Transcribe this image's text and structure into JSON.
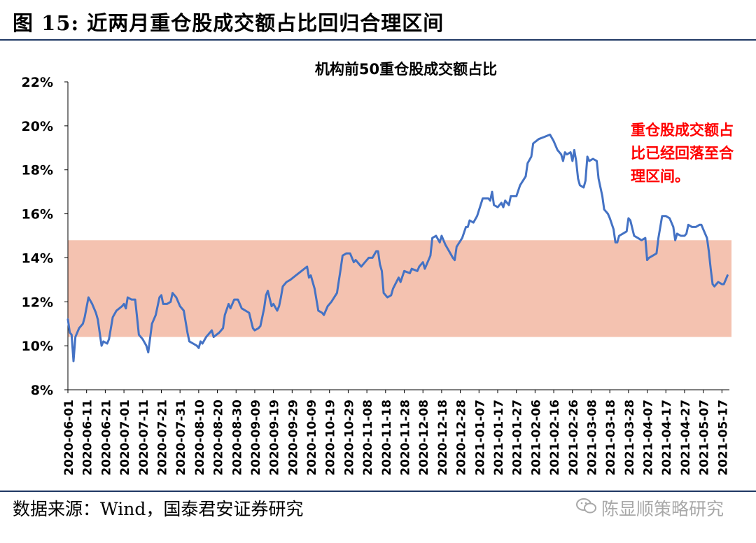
{
  "figure_title": "图 15:  近两月重仓股成交额占比回归合理区间",
  "source_text": "数据来源：Wind，国泰君安证券研究",
  "watermark_text": "陈显顺策略研究",
  "watermark_icon": "wechat-icon",
  "colors": {
    "line": "#4472c4",
    "band": "#f4c2b0",
    "annotation": "#ff0000",
    "rule": "#1f3864"
  },
  "chart_data": {
    "type": "line",
    "title": "机构前50重仓股成交额占比",
    "annotation": [
      "重仓股成交额占",
      "比已经回落至合",
      "理区间。"
    ],
    "ylim": [
      8,
      22
    ],
    "yticks": [
      8,
      10,
      12,
      14,
      16,
      18,
      20,
      22
    ],
    "ytick_labels": [
      "8%",
      "10%",
      "12%",
      "14%",
      "16%",
      "18%",
      "20%",
      "22%"
    ],
    "xtick_labels": [
      "2020-06-01",
      "2020-06-11",
      "2020-06-21",
      "2020-07-01",
      "2020-07-11",
      "2020-07-21",
      "2020-07-31",
      "2020-08-10",
      "2020-08-20",
      "2020-08-30",
      "2020-09-09",
      "2020-09-19",
      "2020-09-29",
      "2020-10-09",
      "2020-10-19",
      "2020-10-29",
      "2020-11-08",
      "2020-11-18",
      "2020-11-28",
      "2020-12-08",
      "2020-12-18",
      "2020-12-28",
      "2021-01-07",
      "2021-01-17",
      "2021-01-27",
      "2021-02-06",
      "2021-02-16",
      "2021-02-26",
      "2021-03-08",
      "2021-03-18",
      "2021-03-28",
      "2021-04-07",
      "2021-04-17",
      "2021-04-27",
      "2021-05-07",
      "2021-05-17"
    ],
    "x_start": "2020-06-01",
    "x_end": "2021-05-21",
    "shaded_band": [
      10.4,
      14.8
    ],
    "series": [
      {
        "points": [
          [
            "2020-06-01",
            11.2
          ],
          [
            "2020-06-02",
            10.6
          ],
          [
            "2020-06-03",
            10.5
          ],
          [
            "2020-06-04",
            9.3
          ],
          [
            "2020-06-05",
            10.4
          ],
          [
            "2020-06-07",
            10.8
          ],
          [
            "2020-06-09",
            11.0
          ],
          [
            "2020-06-10",
            11.3
          ],
          [
            "2020-06-12",
            12.2
          ],
          [
            "2020-06-14",
            11.9
          ],
          [
            "2020-06-16",
            11.5
          ],
          [
            "2020-06-17",
            11.2
          ],
          [
            "2020-06-19",
            10.0
          ],
          [
            "2020-06-20",
            10.2
          ],
          [
            "2020-06-22",
            10.1
          ],
          [
            "2020-06-23",
            10.3
          ],
          [
            "2020-06-25",
            11.3
          ],
          [
            "2020-06-27",
            11.6
          ],
          [
            "2020-06-30",
            11.8
          ],
          [
            "2020-07-01",
            11.9
          ],
          [
            "2020-07-02",
            11.7
          ],
          [
            "2020-07-03",
            12.2
          ],
          [
            "2020-07-05",
            12.1
          ],
          [
            "2020-07-07",
            12.1
          ],
          [
            "2020-07-08",
            11.3
          ],
          [
            "2020-07-09",
            10.5
          ],
          [
            "2020-07-11",
            10.3
          ],
          [
            "2020-07-13",
            10.0
          ],
          [
            "2020-07-14",
            9.7
          ],
          [
            "2020-07-16",
            11.0
          ],
          [
            "2020-07-18",
            11.4
          ],
          [
            "2020-07-20",
            12.2
          ],
          [
            "2020-07-21",
            12.3
          ],
          [
            "2020-07-22",
            11.9
          ],
          [
            "2020-07-24",
            11.9
          ],
          [
            "2020-07-26",
            12.0
          ],
          [
            "2020-07-27",
            12.4
          ],
          [
            "2020-07-29",
            12.2
          ],
          [
            "2020-07-31",
            11.8
          ],
          [
            "2020-08-02",
            11.6
          ],
          [
            "2020-08-04",
            10.6
          ],
          [
            "2020-08-05",
            10.2
          ],
          [
            "2020-08-07",
            10.1
          ],
          [
            "2020-08-09",
            10.0
          ],
          [
            "2020-08-10",
            9.9
          ],
          [
            "2020-08-11",
            10.2
          ],
          [
            "2020-08-12",
            10.1
          ],
          [
            "2020-08-14",
            10.4
          ],
          [
            "2020-08-17",
            10.7
          ],
          [
            "2020-08-18",
            10.4
          ],
          [
            "2020-08-21",
            10.6
          ],
          [
            "2020-08-23",
            10.8
          ],
          [
            "2020-08-24",
            11.4
          ],
          [
            "2020-08-26",
            11.9
          ],
          [
            "2020-08-27",
            11.7
          ],
          [
            "2020-08-29",
            12.1
          ],
          [
            "2020-08-31",
            12.1
          ],
          [
            "2020-09-02",
            11.7
          ],
          [
            "2020-09-04",
            11.6
          ],
          [
            "2020-09-06",
            11.5
          ],
          [
            "2020-09-08",
            10.8
          ],
          [
            "2020-09-09",
            10.7
          ],
          [
            "2020-09-11",
            10.8
          ],
          [
            "2020-09-12",
            10.9
          ],
          [
            "2020-09-14",
            11.7
          ],
          [
            "2020-09-15",
            12.3
          ],
          [
            "2020-09-16",
            12.5
          ],
          [
            "2020-09-18",
            11.8
          ],
          [
            "2020-09-19",
            11.9
          ],
          [
            "2020-09-21",
            11.6
          ],
          [
            "2020-09-22",
            11.8
          ],
          [
            "2020-09-23",
            12.2
          ],
          [
            "2020-09-24",
            12.7
          ],
          [
            "2020-09-26",
            12.9
          ],
          [
            "2020-09-28",
            13.0
          ],
          [
            "2020-10-01",
            13.2
          ],
          [
            "2020-10-04",
            13.4
          ],
          [
            "2020-10-07",
            13.6
          ],
          [
            "2020-10-08",
            13.1
          ],
          [
            "2020-10-09",
            13.2
          ],
          [
            "2020-10-11",
            12.6
          ],
          [
            "2020-10-13",
            11.6
          ],
          [
            "2020-10-15",
            11.5
          ],
          [
            "2020-10-16",
            11.4
          ],
          [
            "2020-10-18",
            11.8
          ],
          [
            "2020-10-20",
            12.0
          ],
          [
            "2020-10-23",
            12.4
          ],
          [
            "2020-10-25",
            13.5
          ],
          [
            "2020-10-26",
            14.1
          ],
          [
            "2020-10-28",
            14.2
          ],
          [
            "2020-10-30",
            14.2
          ],
          [
            "2020-11-01",
            13.8
          ],
          [
            "2020-11-02",
            13.9
          ],
          [
            "2020-11-04",
            13.7
          ],
          [
            "2020-11-05",
            13.6
          ],
          [
            "2020-11-07",
            13.8
          ],
          [
            "2020-11-09",
            14.0
          ],
          [
            "2020-11-11",
            14.0
          ],
          [
            "2020-11-13",
            14.3
          ],
          [
            "2020-11-14",
            14.3
          ],
          [
            "2020-11-15",
            13.7
          ],
          [
            "2020-11-16",
            13.4
          ],
          [
            "2020-11-17",
            12.4
          ],
          [
            "2020-11-19",
            12.2
          ],
          [
            "2020-11-21",
            12.3
          ],
          [
            "2020-11-22",
            12.6
          ],
          [
            "2020-11-25",
            13.1
          ],
          [
            "2020-11-26",
            12.9
          ],
          [
            "2020-11-28",
            13.4
          ],
          [
            "2020-12-01",
            13.3
          ],
          [
            "2020-12-02",
            13.5
          ],
          [
            "2020-12-05",
            13.4
          ],
          [
            "2020-12-06",
            13.6
          ],
          [
            "2020-12-08",
            13.8
          ],
          [
            "2020-12-09",
            13.5
          ],
          [
            "2020-12-12",
            14.1
          ],
          [
            "2020-12-13",
            14.9
          ],
          [
            "2020-12-15",
            15.0
          ],
          [
            "2020-12-17",
            14.7
          ],
          [
            "2020-12-18",
            15.0
          ],
          [
            "2020-12-20",
            14.6
          ],
          [
            "2020-12-22",
            14.3
          ],
          [
            "2020-12-24",
            14.0
          ],
          [
            "2020-12-25",
            13.9
          ],
          [
            "2020-12-26",
            14.5
          ],
          [
            "2020-12-29",
            14.9
          ],
          [
            "2020-12-31",
            15.4
          ],
          [
            "2021-01-01",
            15.4
          ],
          [
            "2021-01-02",
            15.7
          ],
          [
            "2021-01-04",
            15.6
          ],
          [
            "2021-01-06",
            15.9
          ],
          [
            "2021-01-09",
            16.7
          ],
          [
            "2021-01-12",
            16.7
          ],
          [
            "2021-01-13",
            16.6
          ],
          [
            "2021-01-14",
            17.0
          ],
          [
            "2021-01-15",
            16.4
          ],
          [
            "2021-01-17",
            16.3
          ],
          [
            "2021-01-19",
            16.5
          ],
          [
            "2021-01-20",
            16.3
          ],
          [
            "2021-01-21",
            16.6
          ],
          [
            "2021-01-23",
            16.4
          ],
          [
            "2021-01-24",
            16.8
          ],
          [
            "2021-01-27",
            16.8
          ],
          [
            "2021-01-29",
            17.3
          ],
          [
            "2021-02-01",
            17.7
          ],
          [
            "2021-02-02",
            18.3
          ],
          [
            "2021-02-04",
            18.6
          ],
          [
            "2021-02-05",
            19.2
          ],
          [
            "2021-02-08",
            19.4
          ],
          [
            "2021-02-11",
            19.5
          ],
          [
            "2021-02-14",
            19.6
          ],
          [
            "2021-02-16",
            19.3
          ],
          [
            "2021-02-18",
            18.9
          ],
          [
            "2021-02-20",
            18.7
          ],
          [
            "2021-02-21",
            18.4
          ],
          [
            "2021-02-22",
            18.8
          ],
          [
            "2021-02-23",
            18.7
          ],
          [
            "2021-02-25",
            18.8
          ],
          [
            "2021-02-26",
            18.4
          ],
          [
            "2021-02-27",
            18.9
          ],
          [
            "2021-02-28",
            18.4
          ],
          [
            "2021-03-01",
            17.6
          ],
          [
            "2021-03-02",
            17.3
          ],
          [
            "2021-03-04",
            17.2
          ],
          [
            "2021-03-05",
            17.5
          ],
          [
            "2021-03-06",
            18.6
          ],
          [
            "2021-03-07",
            18.4
          ],
          [
            "2021-03-09",
            18.5
          ],
          [
            "2021-03-11",
            18.4
          ],
          [
            "2021-03-12",
            17.6
          ],
          [
            "2021-03-14",
            16.8
          ],
          [
            "2021-03-15",
            16.2
          ],
          [
            "2021-03-17",
            16.0
          ],
          [
            "2021-03-18",
            15.8
          ],
          [
            "2021-03-20",
            15.3
          ],
          [
            "2021-03-21",
            14.7
          ],
          [
            "2021-03-22",
            14.7
          ],
          [
            "2021-03-23",
            15.0
          ],
          [
            "2021-03-25",
            15.1
          ],
          [
            "2021-03-27",
            15.2
          ],
          [
            "2021-03-28",
            15.8
          ],
          [
            "2021-03-29",
            15.7
          ],
          [
            "2021-03-31",
            15.0
          ],
          [
            "2021-04-02",
            14.9
          ],
          [
            "2021-04-04",
            14.8
          ],
          [
            "2021-04-06",
            14.9
          ],
          [
            "2021-04-07",
            13.9
          ],
          [
            "2021-04-08",
            14.0
          ],
          [
            "2021-04-10",
            14.1
          ],
          [
            "2021-04-12",
            14.2
          ],
          [
            "2021-04-13",
            14.9
          ],
          [
            "2021-04-15",
            15.9
          ],
          [
            "2021-04-17",
            15.9
          ],
          [
            "2021-04-19",
            15.8
          ],
          [
            "2021-04-20",
            15.6
          ],
          [
            "2021-04-21",
            15.4
          ],
          [
            "2021-04-22",
            14.8
          ],
          [
            "2021-04-23",
            15.1
          ],
          [
            "2021-04-25",
            15.0
          ],
          [
            "2021-04-27",
            15.0
          ],
          [
            "2021-04-28",
            15.1
          ],
          [
            "2021-04-29",
            15.5
          ],
          [
            "2021-05-01",
            15.4
          ],
          [
            "2021-05-03",
            15.4
          ],
          [
            "2021-05-05",
            15.5
          ],
          [
            "2021-05-06",
            15.5
          ],
          [
            "2021-05-07",
            15.3
          ],
          [
            "2021-05-09",
            14.9
          ],
          [
            "2021-05-10",
            14.3
          ],
          [
            "2021-05-11",
            13.5
          ],
          [
            "2021-05-12",
            12.8
          ],
          [
            "2021-05-13",
            12.7
          ],
          [
            "2021-05-14",
            12.8
          ],
          [
            "2021-05-15",
            12.9
          ],
          [
            "2021-05-17",
            12.8
          ],
          [
            "2021-05-18",
            12.8
          ],
          [
            "2021-05-19",
            13.0
          ],
          [
            "2021-05-20",
            13.2
          ]
        ]
      }
    ]
  }
}
